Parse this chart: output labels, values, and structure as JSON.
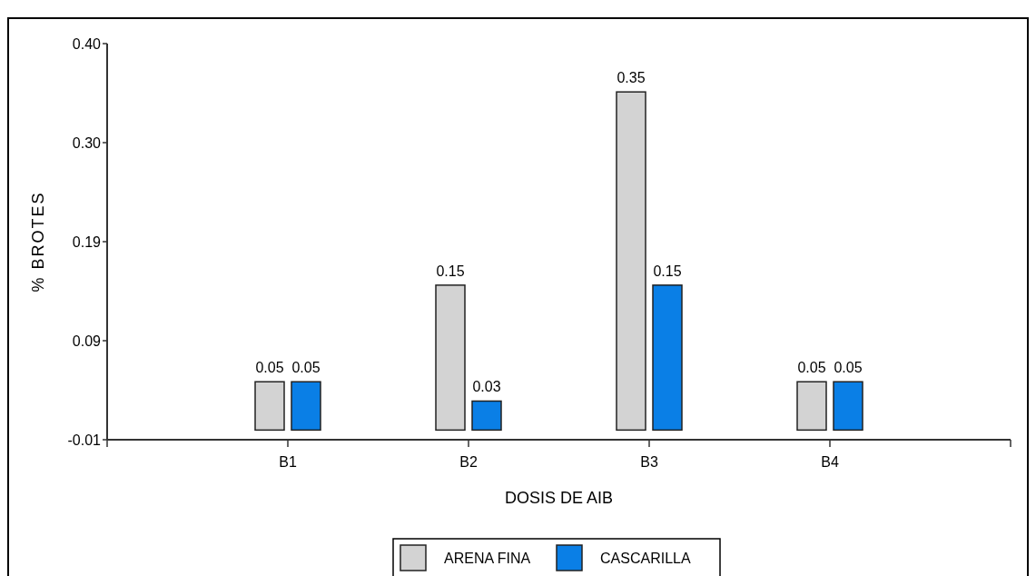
{
  "chart_data": {
    "type": "bar",
    "xlabel": "DOSIS DE AIB",
    "ylabel": "% BROTES",
    "categories": [
      "B1",
      "B2",
      "B3",
      "B4"
    ],
    "series": [
      {
        "name": "ARENA FINA",
        "color": "#d3d3d3",
        "values": [
          0.05,
          0.15,
          0.35,
          0.05
        ]
      },
      {
        "name": "CASCARILLA",
        "color": "#0a7fe6",
        "values": [
          0.05,
          0.03,
          0.15,
          0.05
        ]
      }
    ],
    "ylim": [
      -0.01,
      0.4
    ],
    "yticks": [
      {
        "value": -0.01,
        "label": "-0.01"
      },
      {
        "value": 0.0925,
        "label": "0.09"
      },
      {
        "value": 0.195,
        "label": "0.19"
      },
      {
        "value": 0.2975,
        "label": "0.30"
      },
      {
        "value": 0.4,
        "label": "0.40"
      }
    ],
    "data_labels": true,
    "grid": false,
    "legend": "bottom"
  }
}
